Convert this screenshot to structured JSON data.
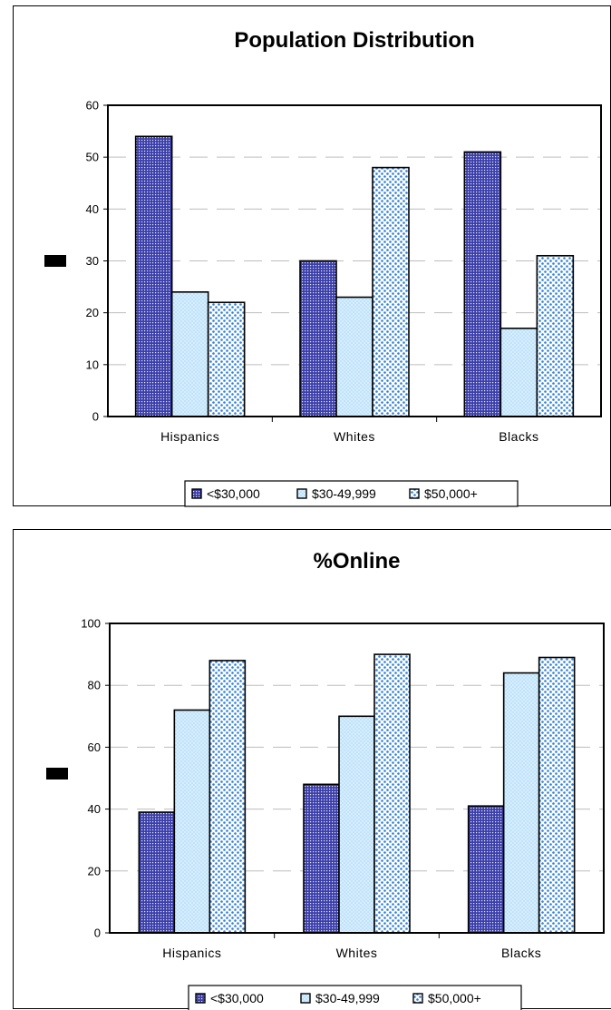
{
  "colors": {
    "series_1": "#3b3fa8",
    "series_2": "#bfe3fb",
    "series_3": "#2f7fd6",
    "gridline": "#bdbdbd"
  },
  "chart_data": [
    {
      "type": "bar",
      "title": "Population Distribution",
      "xlabel": "",
      "ylabel": "",
      "categories": [
        "Hispanics",
        "Whites",
        "Blacks"
      ],
      "series": [
        {
          "name": "<$30,000",
          "values": [
            54,
            30,
            51
          ]
        },
        {
          "name": "$30-49,999",
          "values": [
            24,
            23,
            17
          ]
        },
        {
          "name": "$50,000+",
          "values": [
            22,
            48,
            31
          ]
        }
      ],
      "ylim": [
        0,
        60
      ],
      "yticks": [
        "0",
        "10",
        "20",
        "30",
        "40",
        "50",
        "60"
      ],
      "grid": true,
      "legend": "bottom"
    },
    {
      "type": "bar",
      "title": "%Online",
      "xlabel": "",
      "ylabel": "",
      "categories": [
        "Hispanics",
        "Whites",
        "Blacks"
      ],
      "series": [
        {
          "name": "<$30,000",
          "values": [
            39,
            48,
            41
          ]
        },
        {
          "name": "$30-49,999",
          "values": [
            72,
            70,
            84
          ]
        },
        {
          "name": "$50,000+",
          "values": [
            88,
            90,
            89
          ]
        }
      ],
      "ylim": [
        0,
        100
      ],
      "yticks": [
        "0",
        "20",
        "40",
        "60",
        "80",
        "100"
      ],
      "grid": true,
      "legend": "bottom"
    }
  ]
}
